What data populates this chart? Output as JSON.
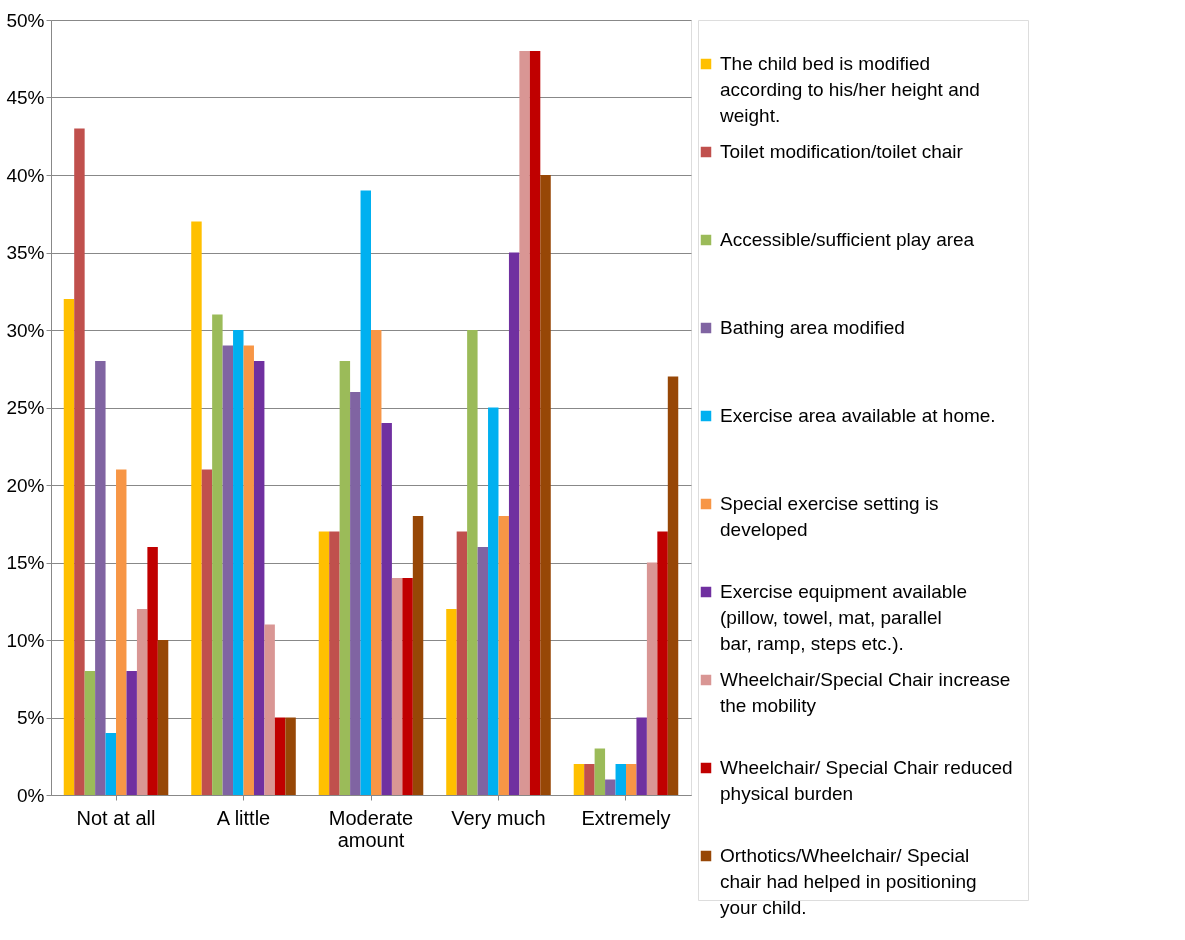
{
  "chart_data": {
    "type": "bar",
    "categories": [
      "Not at all",
      "A little",
      "Moderate amount",
      "Very much",
      "Extremely"
    ],
    "series": [
      {
        "name": "The child bed is modified according to his/her height and weight.",
        "color": "#ffc000",
        "values": [
          32,
          37,
          17,
          12,
          2
        ]
      },
      {
        "name": "Toilet modification/toilet chair",
        "color": "#c0504d",
        "values": [
          43,
          21,
          17,
          17,
          2
        ]
      },
      {
        "name": "Accessible/sufficient play area",
        "color": "#9bbb59",
        "values": [
          8,
          31,
          28,
          30,
          3
        ]
      },
      {
        "name": "Bathing area modified",
        "color": "#8064a2",
        "values": [
          28,
          29,
          26,
          16,
          1
        ]
      },
      {
        "name": "Exercise area available at home.",
        "color": "#00b0f0",
        "values": [
          4,
          30,
          39,
          25,
          2
        ]
      },
      {
        "name": "Special exercise setting is developed",
        "color": "#f79646",
        "values": [
          21,
          29,
          30,
          18,
          2
        ]
      },
      {
        "name": "Exercise equipment available (pillow, towel, mat, parallel bar, ramp, steps etc.).",
        "color": "#7030a0",
        "values": [
          8,
          28,
          24,
          35,
          5
        ]
      },
      {
        "name": "Wheelchair/Special Chair increase the mobility",
        "color": "#d99694",
        "values": [
          12,
          11,
          14,
          48,
          15
        ]
      },
      {
        "name": "Wheelchair/ Special Chair reduced physical burden",
        "color": "#c00000",
        "values": [
          16,
          5,
          14,
          48,
          17
        ]
      },
      {
        "name": "Orthotics/Wheelchair/ Special chair had helped  in positioning your child.",
        "color": "#974706",
        "values": [
          10,
          5,
          18,
          40,
          27
        ]
      }
    ],
    "ylim": [
      0,
      50
    ],
    "yticks": [
      {
        "value": 0,
        "label": "0%"
      },
      {
        "value": 5,
        "label": "5%"
      },
      {
        "value": 10,
        "label": "10%"
      },
      {
        "value": 15,
        "label": "15%"
      },
      {
        "value": 20,
        "label": "20%"
      },
      {
        "value": 25,
        "label": "25%"
      },
      {
        "value": 30,
        "label": "30%"
      },
      {
        "value": 35,
        "label": "35%"
      },
      {
        "value": 40,
        "label": "40%"
      },
      {
        "value": 45,
        "label": "45%"
      },
      {
        "value": 50,
        "label": "50%"
      }
    ],
    "grid": "y",
    "legend": "right"
  }
}
